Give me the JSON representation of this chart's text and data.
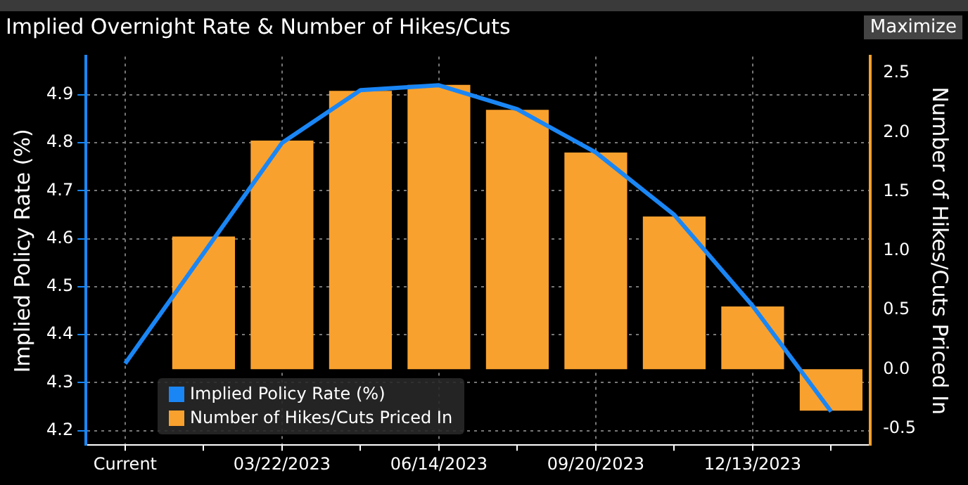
{
  "chart_data": {
    "type": "bar",
    "title": "Implied Overnight Rate & Number of Hikes/Cuts",
    "categories": [
      "Current",
      null,
      "03/22/2023",
      null,
      "06/14/2023",
      null,
      "09/20/2023",
      null,
      "12/13/2023",
      null
    ],
    "series": [
      {
        "name": "Implied Policy Rate (%)",
        "type": "line",
        "color": "#1a86f5",
        "values": [
          4.34,
          4.57,
          4.8,
          4.91,
          4.92,
          4.87,
          4.78,
          4.65,
          4.46,
          4.24
        ]
      },
      {
        "name": "Number of Hikes/Cuts Priced In",
        "axis": "y2",
        "color": "#f9a12e",
        "values": [
          null,
          1.12,
          1.93,
          2.35,
          2.4,
          2.19,
          1.83,
          1.29,
          0.53,
          -0.35
        ]
      }
    ],
    "ylabel": "Implied Policy Rate (%)",
    "y2label": "Number of Hikes/Cuts Priced In",
    "ylim": [
      4.17,
      4.98
    ],
    "yticks": [
      4.2,
      4.3,
      4.4,
      4.5,
      4.6,
      4.7,
      4.8,
      4.9
    ],
    "y2lim": [
      -0.64,
      2.64
    ],
    "y2ticks": [
      -0.5,
      {
        "value": 0,
        "label": "0.0"
      },
      0.5,
      {
        "value": 1,
        "label": "1.0"
      },
      1.5,
      {
        "value": 2,
        "label": "2.0"
      },
      2.5
    ],
    "grid": true,
    "legend": "bottom left",
    "annotations": [
      "Maximize"
    ]
  }
}
